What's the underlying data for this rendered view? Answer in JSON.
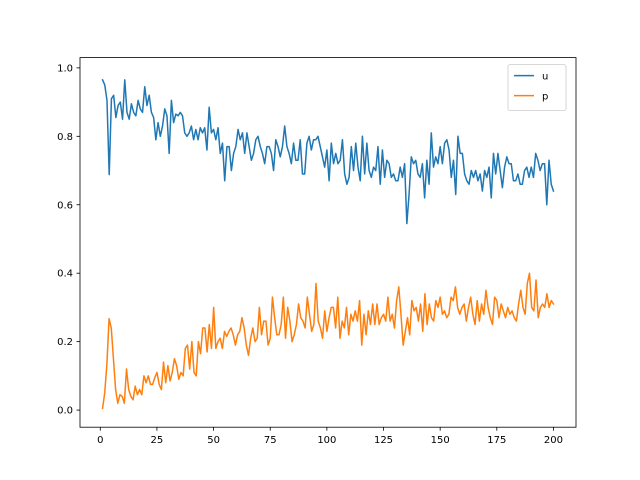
{
  "chart_data": {
    "type": "line",
    "title": "",
    "xlabel": "",
    "ylabel": "",
    "xlim": [
      -8.95,
      209.95
    ],
    "ylim": [
      -0.05,
      1.03
    ],
    "x_ticks": [
      0,
      25,
      50,
      75,
      100,
      125,
      150,
      175,
      200
    ],
    "y_ticks": [
      0.0,
      0.2,
      0.4,
      0.6,
      0.8,
      1.0
    ],
    "x_tick_labels": [
      "0",
      "25",
      "50",
      "75",
      "100",
      "125",
      "150",
      "175",
      "200"
    ],
    "y_tick_labels": [
      "0.0",
      "0.2",
      "0.4",
      "0.6",
      "0.8",
      "1.0"
    ],
    "grid": false,
    "legend_position": "top-right",
    "x_start": 1,
    "x_end": 200,
    "series": [
      {
        "name": "u",
        "color": "#1f77b4",
        "values": [
          0.965,
          0.95,
          0.905,
          0.688,
          0.91,
          0.92,
          0.855,
          0.89,
          0.9,
          0.85,
          0.965,
          0.87,
          0.85,
          0.895,
          0.87,
          0.86,
          0.905,
          0.88,
          0.87,
          0.945,
          0.89,
          0.92,
          0.87,
          0.855,
          0.79,
          0.84,
          0.8,
          0.83,
          0.88,
          0.86,
          0.75,
          0.905,
          0.84,
          0.865,
          0.86,
          0.87,
          0.86,
          0.81,
          0.8,
          0.81,
          0.83,
          0.79,
          0.82,
          0.79,
          0.825,
          0.81,
          0.825,
          0.76,
          0.885,
          0.81,
          0.82,
          0.79,
          0.825,
          0.75,
          0.78,
          0.67,
          0.77,
          0.77,
          0.7,
          0.75,
          0.77,
          0.82,
          0.79,
          0.81,
          0.75,
          0.81,
          0.77,
          0.73,
          0.75,
          0.79,
          0.8,
          0.77,
          0.75,
          0.72,
          0.77,
          0.77,
          0.75,
          0.7,
          0.79,
          0.77,
          0.74,
          0.77,
          0.83,
          0.77,
          0.75,
          0.72,
          0.78,
          0.73,
          0.73,
          0.79,
          0.69,
          0.69,
          0.78,
          0.8,
          0.76,
          0.79,
          0.79,
          0.8,
          0.77,
          0.74,
          0.71,
          0.76,
          0.67,
          0.78,
          0.72,
          0.75,
          0.72,
          0.73,
          0.79,
          0.69,
          0.66,
          0.68,
          0.77,
          0.7,
          0.78,
          0.71,
          0.67,
          0.8,
          0.69,
          0.78,
          0.7,
          0.68,
          0.71,
          0.7,
          0.77,
          0.66,
          0.76,
          0.68,
          0.73,
          0.72,
          0.68,
          0.69,
          0.67,
          0.67,
          0.71,
          0.68,
          0.72,
          0.545,
          0.63,
          0.74,
          0.72,
          0.73,
          0.69,
          0.68,
          0.72,
          0.62,
          0.73,
          0.66,
          0.81,
          0.71,
          0.74,
          0.72,
          0.77,
          0.72,
          0.78,
          0.79,
          0.76,
          0.68,
          0.73,
          0.63,
          0.8,
          0.75,
          0.75,
          0.69,
          0.67,
          0.66,
          0.7,
          0.68,
          0.7,
          0.67,
          0.69,
          0.64,
          0.7,
          0.68,
          0.71,
          0.62,
          0.75,
          0.69,
          0.75,
          0.7,
          0.65,
          0.71,
          0.74,
          0.72,
          0.72,
          0.67,
          0.67,
          0.69,
          0.66,
          0.66,
          0.7,
          0.71,
          0.68,
          0.71,
          0.68,
          0.75,
          0.73,
          0.7,
          0.72,
          0.72,
          0.6,
          0.73,
          0.66,
          0.64
        ]
      },
      {
        "name": "p",
        "color": "#ff7f0e",
        "values": [
          0.005,
          0.05,
          0.135,
          0.267,
          0.24,
          0.15,
          0.06,
          0.02,
          0.045,
          0.04,
          0.02,
          0.12,
          0.06,
          0.04,
          0.03,
          0.07,
          0.045,
          0.06,
          0.045,
          0.1,
          0.08,
          0.1,
          0.075,
          0.075,
          0.095,
          0.11,
          0.075,
          0.06,
          0.14,
          0.08,
          0.13,
          0.085,
          0.11,
          0.15,
          0.13,
          0.09,
          0.11,
          0.1,
          0.18,
          0.19,
          0.12,
          0.2,
          0.11,
          0.1,
          0.2,
          0.165,
          0.24,
          0.24,
          0.17,
          0.25,
          0.18,
          0.3,
          0.18,
          0.2,
          0.21,
          0.18,
          0.23,
          0.215,
          0.23,
          0.24,
          0.22,
          0.19,
          0.22,
          0.23,
          0.27,
          0.24,
          0.19,
          0.16,
          0.21,
          0.24,
          0.2,
          0.21,
          0.3,
          0.22,
          0.26,
          0.26,
          0.19,
          0.21,
          0.33,
          0.27,
          0.22,
          0.22,
          0.25,
          0.33,
          0.21,
          0.3,
          0.26,
          0.2,
          0.22,
          0.25,
          0.31,
          0.27,
          0.26,
          0.24,
          0.33,
          0.28,
          0.23,
          0.25,
          0.37,
          0.26,
          0.24,
          0.21,
          0.29,
          0.23,
          0.27,
          0.3,
          0.3,
          0.24,
          0.33,
          0.21,
          0.26,
          0.24,
          0.3,
          0.22,
          0.28,
          0.26,
          0.29,
          0.26,
          0.32,
          0.19,
          0.28,
          0.22,
          0.29,
          0.25,
          0.31,
          0.25,
          0.31,
          0.25,
          0.27,
          0.28,
          0.26,
          0.33,
          0.26,
          0.28,
          0.24,
          0.32,
          0.36,
          0.28,
          0.19,
          0.23,
          0.27,
          0.22,
          0.32,
          0.29,
          0.3,
          0.26,
          0.31,
          0.23,
          0.34,
          0.25,
          0.31,
          0.27,
          0.26,
          0.32,
          0.3,
          0.33,
          0.28,
          0.29,
          0.27,
          0.28,
          0.33,
          0.32,
          0.36,
          0.3,
          0.28,
          0.3,
          0.31,
          0.26,
          0.3,
          0.33,
          0.28,
          0.25,
          0.32,
          0.26,
          0.31,
          0.28,
          0.35,
          0.3,
          0.27,
          0.25,
          0.33,
          0.32,
          0.27,
          0.31,
          0.29,
          0.27,
          0.3,
          0.28,
          0.29,
          0.27,
          0.26,
          0.31,
          0.35,
          0.3,
          0.28,
          0.37,
          0.4,
          0.3,
          0.29,
          0.38,
          0.27,
          0.3,
          0.31,
          0.3,
          0.34,
          0.3,
          0.32,
          0.31
        ]
      }
    ]
  }
}
